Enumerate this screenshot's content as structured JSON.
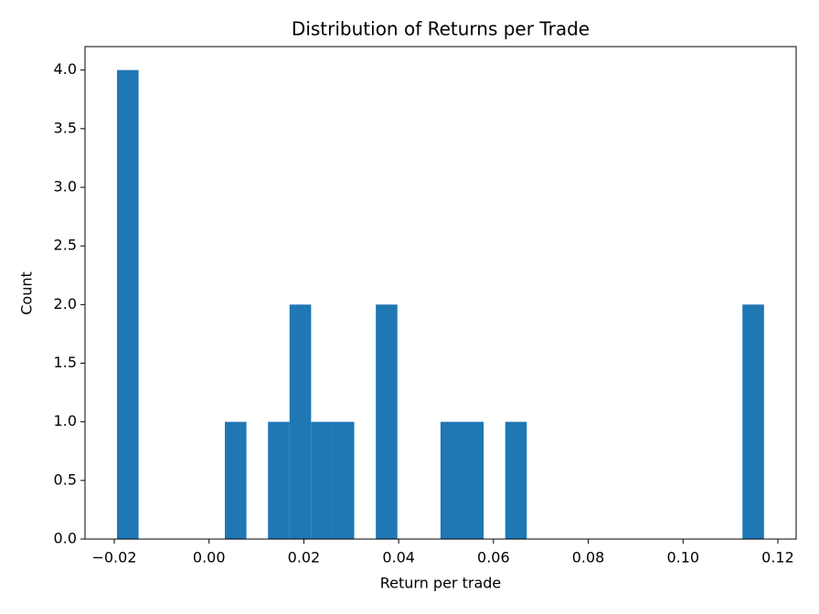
{
  "chart_data": {
    "type": "histogram",
    "title": "Distribution of Returns per Trade",
    "x_label": "Return per trade",
    "y_label": "Count",
    "color": "#1f77b4",
    "bins": [
      -0.01942,
      -0.01487,
      -0.01032,
      -0.00577,
      -0.00122,
      0.00333,
      0.00788,
      0.01243,
      0.01698,
      0.02153,
      0.02608,
      0.03063,
      0.03518,
      0.03973,
      0.04428,
      0.04883,
      0.05338,
      0.05793,
      0.06248,
      0.06703,
      0.07158,
      0.07613,
      0.08068,
      0.08523,
      0.08978,
      0.09433,
      0.09888,
      0.10343,
      0.10798,
      0.11253,
      0.11708
    ],
    "counts": [
      4,
      0,
      0,
      0,
      0,
      1,
      0,
      1,
      2,
      1,
      1,
      0,
      2,
      0,
      0,
      1,
      1,
      0,
      1,
      0,
      0,
      0,
      0,
      0,
      0,
      0,
      0,
      0,
      0,
      2
    ],
    "xlim": [
      -0.02617,
      0.12386
    ],
    "ylim": [
      0,
      4.2
    ],
    "xticks": [
      {
        "value": -0.02,
        "label": "−0.02"
      },
      {
        "value": 0,
        "label": "0.00"
      },
      {
        "value": 0.02,
        "label": "0.02"
      },
      {
        "value": 0.04,
        "label": "0.04"
      },
      {
        "value": 0.06,
        "label": "0.06"
      },
      {
        "value": 0.08,
        "label": "0.08"
      },
      {
        "value": 0.1,
        "label": "0.10"
      },
      {
        "value": 0.12,
        "label": "0.12"
      }
    ],
    "yticks": [
      {
        "value": 0,
        "label": "0.0"
      },
      {
        "value": 0.5,
        "label": "0.5"
      },
      {
        "value": 1,
        "label": "1.0"
      },
      {
        "value": 1.5,
        "label": "1.5"
      },
      {
        "value": 2,
        "label": "2.0"
      },
      {
        "value": 2.5,
        "label": "2.5"
      },
      {
        "value": 3,
        "label": "3.0"
      },
      {
        "value": 3.5,
        "label": "3.5"
      },
      {
        "value": 4,
        "label": "4.0"
      }
    ]
  }
}
